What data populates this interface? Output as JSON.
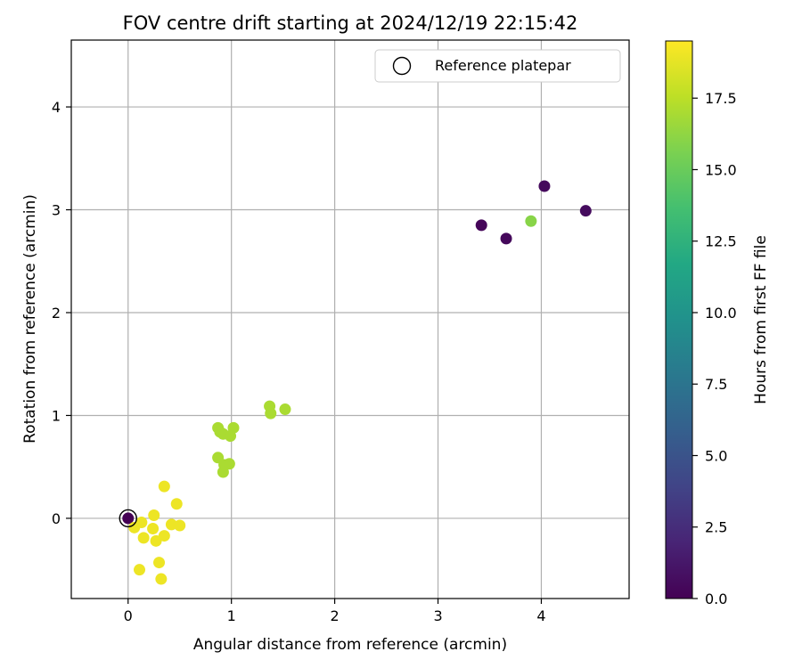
{
  "chart_data": {
    "type": "scatter",
    "title": "FOV centre drift starting at 2024/12/19 22:15:42",
    "xlabel": "Angular distance from reference (arcmin)",
    "ylabel": "Rotation from reference (arcmin)",
    "xlim": [
      -0.55,
      4.85
    ],
    "ylim": [
      -0.78,
      4.65
    ],
    "xticks": [
      0,
      1,
      2,
      3,
      4
    ],
    "yticks": [
      0,
      1,
      2,
      3,
      4
    ],
    "grid": true,
    "legend": {
      "label": "Reference platepar",
      "placement": "top-right"
    },
    "reference_point": {
      "x": 0,
      "y": 0
    },
    "colorbar": {
      "label": "Hours from first FF file",
      "range": [
        0.0,
        19.5
      ],
      "ticks": [
        "0.0",
        "2.5",
        "5.0",
        "7.5",
        "10.0",
        "12.5",
        "15.0",
        "17.5"
      ],
      "colormap": "viridis"
    },
    "points": [
      {
        "x": 0.0,
        "y": 0.0,
        "h": 0.0
      },
      {
        "x": 3.42,
        "y": 2.85,
        "h": 0.3
      },
      {
        "x": 3.66,
        "y": 2.72,
        "h": 0.4
      },
      {
        "x": 4.03,
        "y": 3.23,
        "h": 0.5
      },
      {
        "x": 4.43,
        "y": 2.99,
        "h": 0.6
      },
      {
        "x": 3.9,
        "y": 2.89,
        "h": 16.0
      },
      {
        "x": 0.87,
        "y": 0.88,
        "h": 17.0
      },
      {
        "x": 0.89,
        "y": 0.84,
        "h": 17.0
      },
      {
        "x": 0.92,
        "y": 0.82,
        "h": 17.0
      },
      {
        "x": 0.99,
        "y": 0.8,
        "h": 17.0
      },
      {
        "x": 1.02,
        "y": 0.88,
        "h": 17.0
      },
      {
        "x": 0.87,
        "y": 0.59,
        "h": 17.0
      },
      {
        "x": 0.93,
        "y": 0.52,
        "h": 17.0
      },
      {
        "x": 0.98,
        "y": 0.53,
        "h": 17.0
      },
      {
        "x": 0.92,
        "y": 0.45,
        "h": 17.0
      },
      {
        "x": 1.37,
        "y": 1.09,
        "h": 17.0
      },
      {
        "x": 1.38,
        "y": 1.02,
        "h": 17.0
      },
      {
        "x": 1.52,
        "y": 1.06,
        "h": 17.0
      },
      {
        "x": 0.35,
        "y": 0.31,
        "h": 19.0
      },
      {
        "x": 0.47,
        "y": 0.14,
        "h": 19.0
      },
      {
        "x": 0.25,
        "y": 0.03,
        "h": 19.0
      },
      {
        "x": 0.13,
        "y": -0.04,
        "h": 19.0
      },
      {
        "x": 0.06,
        "y": -0.09,
        "h": 19.0
      },
      {
        "x": 0.24,
        "y": -0.1,
        "h": 19.0
      },
      {
        "x": 0.42,
        "y": -0.06,
        "h": 19.0
      },
      {
        "x": 0.5,
        "y": -0.07,
        "h": 19.0
      },
      {
        "x": 0.15,
        "y": -0.19,
        "h": 19.0
      },
      {
        "x": 0.27,
        "y": -0.22,
        "h": 19.0
      },
      {
        "x": 0.35,
        "y": -0.17,
        "h": 19.0
      },
      {
        "x": 0.3,
        "y": -0.43,
        "h": 19.0
      },
      {
        "x": 0.11,
        "y": -0.5,
        "h": 19.0
      },
      {
        "x": 0.32,
        "y": -0.59,
        "h": 19.0
      }
    ]
  }
}
